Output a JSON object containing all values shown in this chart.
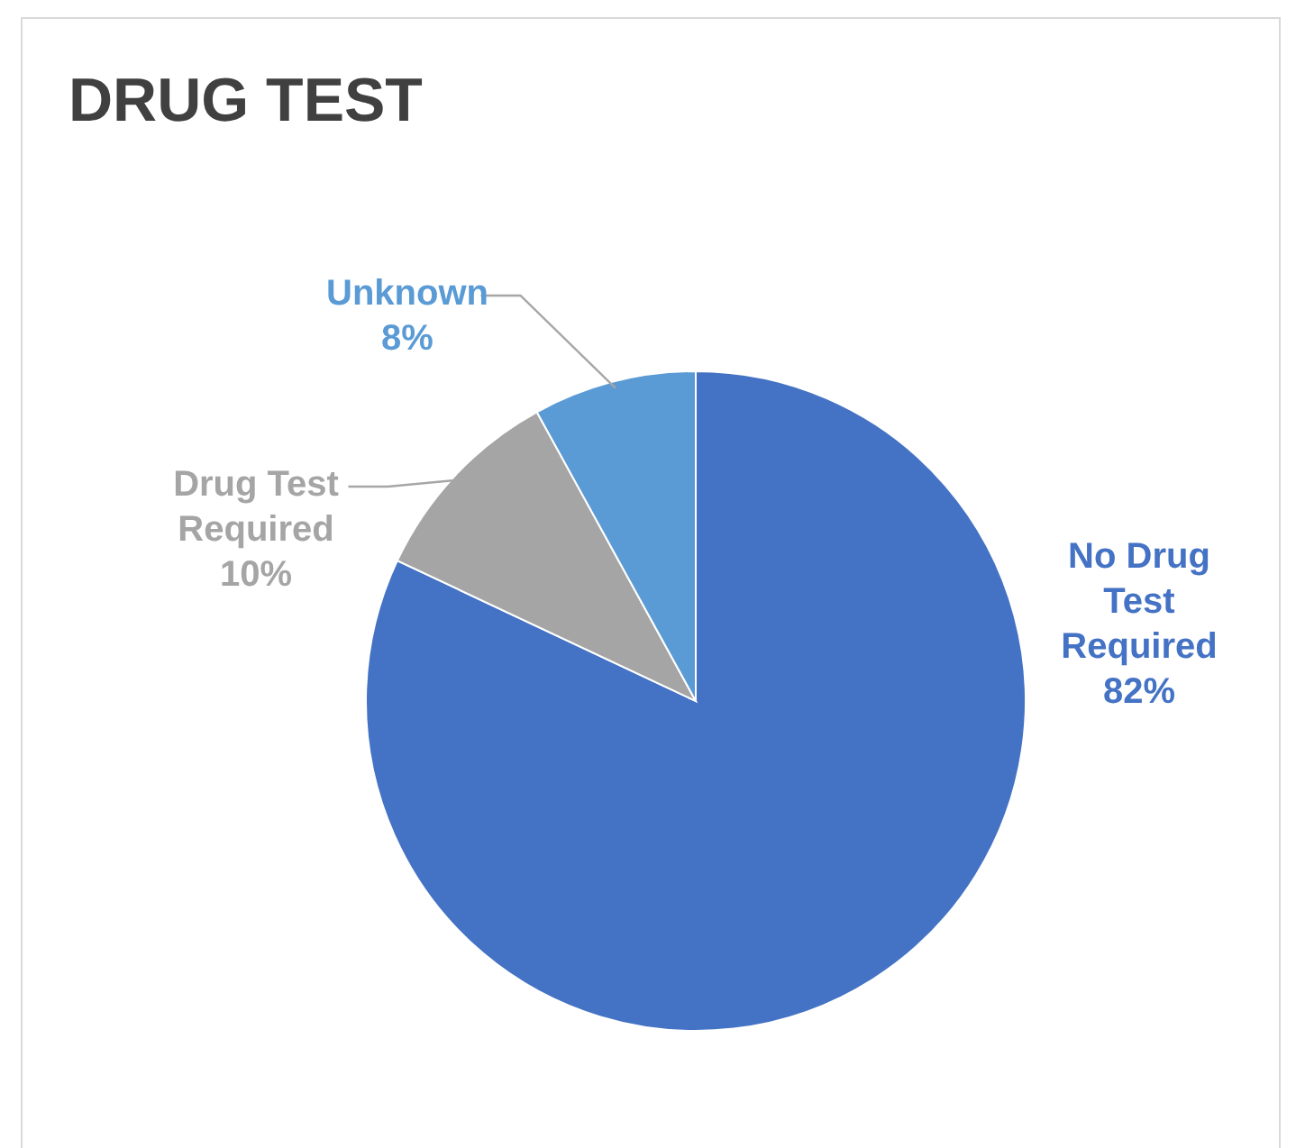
{
  "chart_data": {
    "type": "pie",
    "title": "DRUG TEST",
    "categories": [
      "No Drug Test Required",
      "Drug Test Required",
      "Unknown"
    ],
    "values": [
      82,
      10,
      8
    ],
    "colors": [
      "#4472c4",
      "#a5a5a5",
      "#5b9bd5"
    ],
    "value_labels": [
      "82%",
      "10%",
      "8%"
    ]
  }
}
